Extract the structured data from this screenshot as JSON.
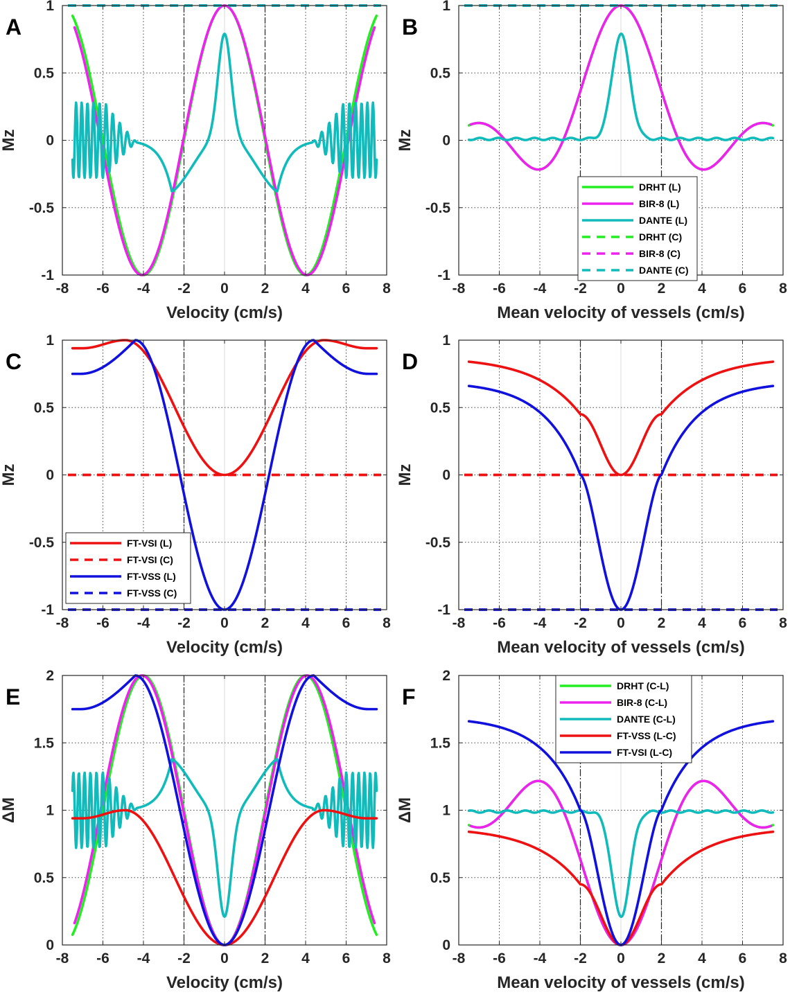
{
  "chart_data": [
    {
      "panel": "A",
      "type": "line",
      "xlabel": "Velocity (cm/s)",
      "ylabel": "Mz",
      "xlim": [
        -8,
        8
      ],
      "ylim": [
        -1,
        1
      ],
      "xticks": [
        "-8",
        "-6",
        "-4",
        "-2",
        "0",
        "2",
        "4",
        "6",
        "8"
      ],
      "yticks": [
        "-1",
        "-0.5",
        "0",
        "0.5",
        "1"
      ],
      "vlines": [
        -2,
        2
      ],
      "legend": null,
      "series": [
        {
          "name": "DRHT (L)",
          "color": "#22ee22",
          "dash": false,
          "shape": "cosC",
          "params": {
            "period": 8,
            "amp": 1,
            "range": 7.5
          }
        },
        {
          "name": "BIR-8 (L)",
          "color": "#ee22ee",
          "dash": false,
          "shape": "cosC",
          "params": {
            "period": 8.15,
            "amp": 1,
            "range": 7.4
          }
        },
        {
          "name": "DANTE (L)",
          "color": "#11bbbb",
          "dash": false,
          "shape": "danteL",
          "params": {
            "peak": 0.79,
            "dip": -0.38,
            "dipx": 2.6
          }
        },
        {
          "name": "DRHT (C)",
          "color": "#22ee22",
          "dash": true,
          "shape": "constC",
          "params": {
            "value": 1
          }
        },
        {
          "name": "BIR-8 (C)",
          "color": "#ee22ee",
          "dash": true,
          "shape": "constC",
          "params": {
            "value": 1
          }
        },
        {
          "name": "DANTE (C)",
          "color": "#11bbbb",
          "dash": true,
          "shape": "constC",
          "params": {
            "value": 1
          }
        }
      ]
    },
    {
      "panel": "B",
      "type": "line",
      "xlabel": "Mean velocity of vessels (cm/s)",
      "ylabel": "Mz",
      "xlim": [
        -8,
        8
      ],
      "ylim": [
        -1,
        1
      ],
      "xticks": [
        "-8",
        "-6",
        "-4",
        "-2",
        "0",
        "2",
        "4",
        "6",
        "8"
      ],
      "yticks": [
        "-1",
        "-0.5",
        "0",
        "0.5",
        "1"
      ],
      "vlines": [
        -2,
        2
      ],
      "legend": {
        "placement": "center-right",
        "entries": [
          "DRHT (L)",
          "BIR-8 (L)",
          "DANTE (L)",
          "DRHT (C)",
          "BIR-8 (C)",
          "DANTE (C)"
        ]
      },
      "series": [
        {
          "name": "DRHT (L)",
          "color": "#22ee22",
          "dash": false,
          "shape": "sincB",
          "params": {
            "amp": 1,
            "period": 5.7,
            "range": 7.5
          }
        },
        {
          "name": "BIR-8 (L)",
          "color": "#ee22ee",
          "dash": false,
          "shape": "sincB",
          "params": {
            "amp": 1,
            "period": 5.7,
            "range": 7.4
          }
        },
        {
          "name": "DANTE (L)",
          "color": "#11bbbb",
          "dash": false,
          "shape": "danteB",
          "params": {
            "peak": 0.79,
            "base": 0.01
          }
        },
        {
          "name": "DRHT (C)",
          "color": "#22ee22",
          "dash": true,
          "shape": "constC",
          "params": {
            "value": 1
          }
        },
        {
          "name": "BIR-8 (C)",
          "color": "#ee22ee",
          "dash": true,
          "shape": "constC",
          "params": {
            "value": 1
          }
        },
        {
          "name": "DANTE (C)",
          "color": "#11bbbb",
          "dash": true,
          "shape": "constC",
          "params": {
            "value": 1
          }
        }
      ]
    },
    {
      "panel": "C",
      "type": "line",
      "xlabel": "Velocity (cm/s)",
      "ylabel": "Mz",
      "xlim": [
        -8,
        8
      ],
      "ylim": [
        -1,
        1
      ],
      "xticks": [
        "-8",
        "-6",
        "-4",
        "-2",
        "0",
        "2",
        "4",
        "6",
        "8"
      ],
      "yticks": [
        "-1",
        "-0.5",
        "0",
        "0.5",
        "1"
      ],
      "vlines": [
        -2,
        2
      ],
      "legend": {
        "placement": "bottom-left",
        "entries": [
          "FT-VSI (L)",
          "FT-VSI (C)",
          "FT-VSS (L)",
          "FT-VSS (C)"
        ]
      },
      "series": [
        {
          "name": "FT-VSI (L)",
          "color": "#ee1111",
          "dash": false,
          "shape": "vsiC",
          "params": {
            "peakx": 4.9
          }
        },
        {
          "name": "FT-VSI (C)",
          "color": "#ee1111",
          "dash": true,
          "shape": "constC",
          "params": {
            "value": 0
          }
        },
        {
          "name": "FT-VSS (L)",
          "color": "#1111dd",
          "dash": false,
          "shape": "vssC",
          "params": {
            "peakx": 4.4
          }
        },
        {
          "name": "FT-VSS (C)",
          "color": "#1111dd",
          "dash": true,
          "shape": "constC",
          "params": {
            "value": -1
          }
        }
      ]
    },
    {
      "panel": "D",
      "type": "line",
      "xlabel": "Mean velocity of vessels (cm/s)",
      "ylabel": "Mz",
      "xlim": [
        -8,
        8
      ],
      "ylim": [
        -1,
        1
      ],
      "xticks": [
        "-8",
        "-6",
        "-4",
        "-2",
        "0",
        "2",
        "4",
        "6",
        "8"
      ],
      "yticks": [
        "-1",
        "-0.5",
        "0",
        "0.5",
        "1"
      ],
      "vlines": [
        -2,
        2
      ],
      "legend": null,
      "series": [
        {
          "name": "FT-VSI (L)",
          "color": "#ee1111",
          "dash": false,
          "shape": "vsiD",
          "params": {
            "end": 0.84
          }
        },
        {
          "name": "FT-VSI (C)",
          "color": "#ee1111",
          "dash": true,
          "shape": "constC",
          "params": {
            "value": 0
          }
        },
        {
          "name": "FT-VSS (L)",
          "color": "#1111dd",
          "dash": false,
          "shape": "vssD",
          "params": {
            "end": 0.66
          }
        },
        {
          "name": "FT-VSS (C)",
          "color": "#1111dd",
          "dash": true,
          "shape": "constC",
          "params": {
            "value": -1
          }
        }
      ]
    },
    {
      "panel": "E",
      "type": "line",
      "xlabel": "Velocity (cm/s)",
      "ylabel": "ΔM",
      "xlim": [
        -8,
        8
      ],
      "ylim": [
        0,
        2
      ],
      "xticks": [
        "-8",
        "-6",
        "-4",
        "-2",
        "0",
        "2",
        "4",
        "6",
        "8"
      ],
      "yticks": [
        "0",
        "0.5",
        "1",
        "1.5",
        "2"
      ],
      "vlines": [
        -2,
        2
      ],
      "legend": null,
      "series": [
        {
          "name": "DRHT (C-L)",
          "color": "#22ee22",
          "dash": false,
          "shape": "cosE",
          "params": {
            "period": 8,
            "range": 7.5
          }
        },
        {
          "name": "BIR-8 (C-L)",
          "color": "#ee22ee",
          "dash": false,
          "shape": "cosE",
          "params": {
            "period": 8.15,
            "range": 7.4
          }
        },
        {
          "name": "DANTE (C-L)",
          "color": "#11bbbb",
          "dash": false,
          "shape": "danteE",
          "params": {
            "min": 0.21,
            "peak": 1.38
          }
        },
        {
          "name": "FT-VSS (L-C)",
          "color": "#ee1111",
          "dash": false,
          "shape": "vsiE",
          "params": {
            "peakx": 4.9
          }
        },
        {
          "name": "FT-VSI (L-C)",
          "color": "#1111dd",
          "dash": false,
          "shape": "vssE",
          "params": {
            "peakx": 4.4
          }
        }
      ]
    },
    {
      "panel": "F",
      "type": "line",
      "xlabel": "Mean velocity of vessels (cm/s)",
      "ylabel": "ΔM",
      "xlim": [
        -8,
        8
      ],
      "ylim": [
        0,
        2
      ],
      "xticks": [
        "-8",
        "-6",
        "-4",
        "-2",
        "0",
        "2",
        "4",
        "6",
        "8"
      ],
      "yticks": [
        "0",
        "0.5",
        "1",
        "1.5",
        "2"
      ],
      "vlines": [
        -2,
        2
      ],
      "legend": {
        "placement": "top-center",
        "entries": [
          "DRHT (C-L)",
          "BIR-8 (C-L)",
          "DANTE (C-L)",
          "FT-VSS (L-C)",
          "FT-VSI (L-C)"
        ]
      },
      "series": [
        {
          "name": "DRHT (C-L)",
          "color": "#22ee22",
          "dash": false,
          "shape": "sincF",
          "params": {
            "range": 7.5
          }
        },
        {
          "name": "BIR-8 (C-L)",
          "color": "#ee22ee",
          "dash": false,
          "shape": "sincF",
          "params": {
            "range": 7.4
          }
        },
        {
          "name": "DANTE (C-L)",
          "color": "#11bbbb",
          "dash": false,
          "shape": "danteF",
          "params": {
            "min": 0.21
          }
        },
        {
          "name": "FT-VSS (L-C)",
          "color": "#ee1111",
          "dash": false,
          "shape": "vsiD",
          "params": {
            "end": 0.84
          }
        },
        {
          "name": "FT-VSI (L-C)",
          "color": "#1111dd",
          "dash": false,
          "shape": "vssF",
          "params": {
            "end": 1.66
          }
        }
      ]
    }
  ]
}
